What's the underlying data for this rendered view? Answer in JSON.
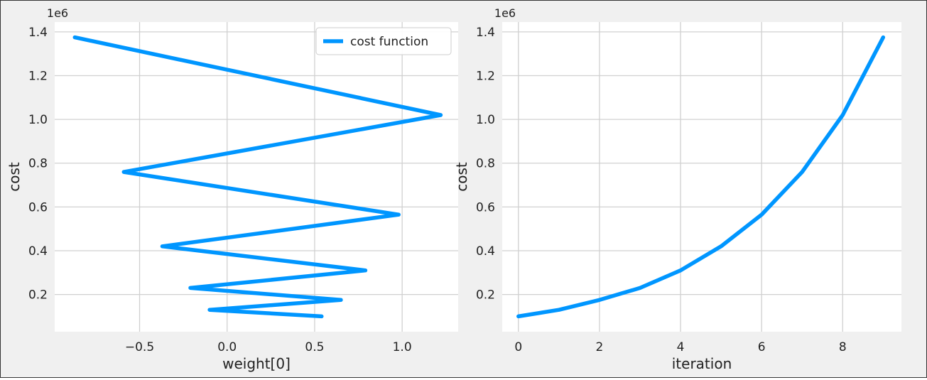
{
  "chart_data": [
    {
      "type": "line",
      "title": "",
      "xlabel": "weight[0]",
      "ylabel": "cost",
      "y_offset_label": "1e6",
      "xlim": [
        -0.985,
        1.32
      ],
      "ylim": [
        30000,
        1445000
      ],
      "xticks": [
        -0.5,
        0.0,
        0.5,
        1.0
      ],
      "xtick_labels": [
        "−0.5",
        "0.0",
        "0.5",
        "1.0"
      ],
      "yticks": [
        0.2,
        0.4,
        0.6,
        0.8,
        1.0,
        1.2,
        1.4
      ],
      "ytick_labels": [
        "0.2",
        "0.4",
        "0.6",
        "0.8",
        "1.0",
        "1.2",
        "1.4"
      ],
      "grid": true,
      "legend_position": "top-right",
      "series": [
        {
          "name": "cost function",
          "color": "#0096ff",
          "x": [
            0.54,
            -0.1,
            0.65,
            -0.21,
            0.79,
            -0.37,
            0.98,
            -0.59,
            1.22,
            -0.87
          ],
          "y": [
            100000,
            130000,
            175000,
            230000,
            310000,
            420000,
            565000,
            760000,
            1020000,
            1375000
          ]
        }
      ]
    },
    {
      "type": "line",
      "title": "",
      "xlabel": "iteration",
      "ylabel": "cost",
      "y_offset_label": "1e6",
      "xlim": [
        -0.4,
        9.45
      ],
      "ylim": [
        30000,
        1445000
      ],
      "xticks": [
        0,
        2,
        4,
        6,
        8
      ],
      "xtick_labels": [
        "0",
        "2",
        "4",
        "6",
        "8"
      ],
      "yticks": [
        0.2,
        0.4,
        0.6,
        0.8,
        1.0,
        1.2,
        1.4
      ],
      "ytick_labels": [
        "0.2",
        "0.4",
        "0.6",
        "0.8",
        "1.0",
        "1.2",
        "1.4"
      ],
      "grid": true,
      "series": [
        {
          "color": "#0096ff",
          "x": [
            0,
            1,
            2,
            3,
            4,
            5,
            6,
            7,
            8,
            9
          ],
          "y": [
            100000,
            130000,
            175000,
            230000,
            310000,
            420000,
            565000,
            760000,
            1020000,
            1375000
          ]
        }
      ]
    }
  ]
}
